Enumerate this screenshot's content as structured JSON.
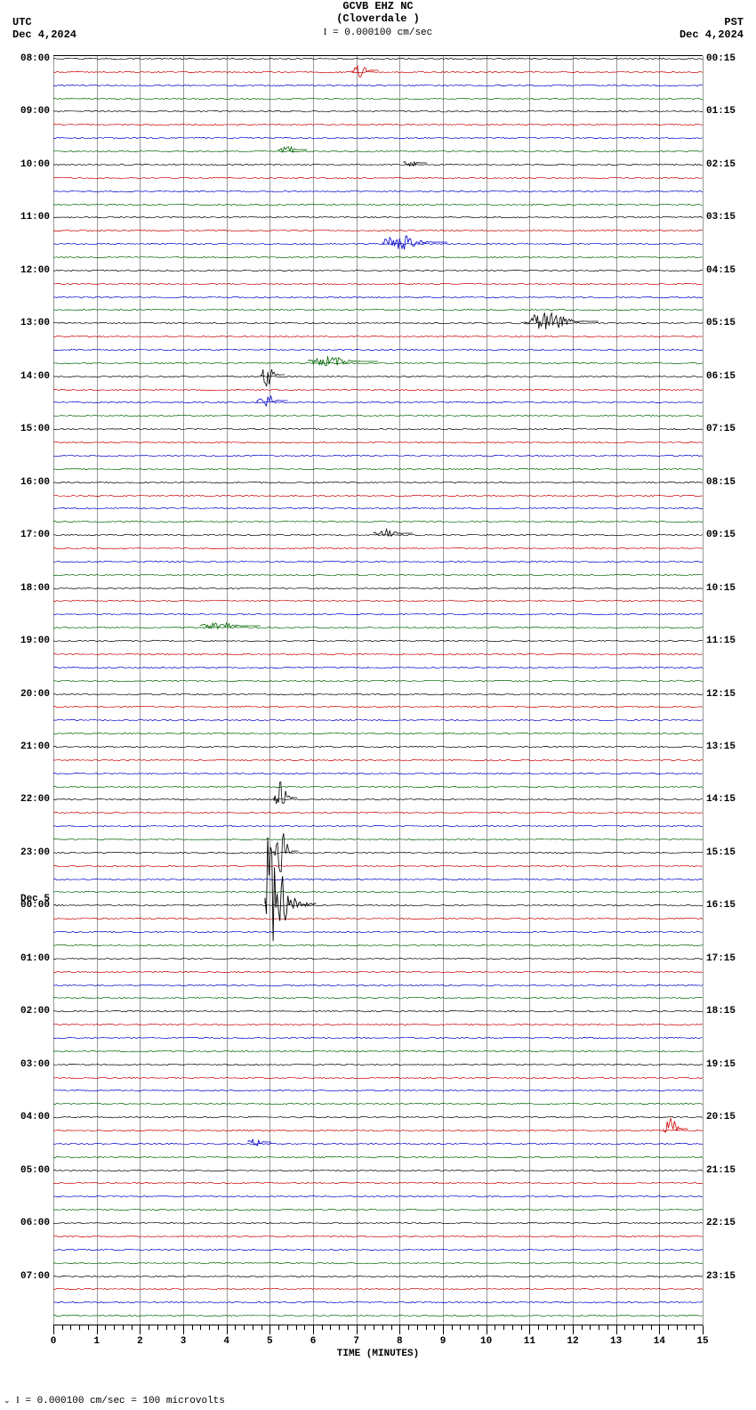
{
  "header": {
    "station": "GCVB EHZ NC",
    "location": "(Cloverdale )",
    "scale_label": "= 0.000100 cm/sec"
  },
  "tz_left": {
    "name": "UTC",
    "date": "Dec 4,2024"
  },
  "tz_right": {
    "name": "PST",
    "date": "Dec 4,2024"
  },
  "plot": {
    "n_traces": 96,
    "colors": [
      "#000000",
      "#cc0000",
      "#0000cc",
      "#006600"
    ],
    "background": "#ffffff",
    "grid_color": "#999999",
    "left_labels": [
      {
        "row": 0,
        "text": "08:00"
      },
      {
        "row": 4,
        "text": "09:00"
      },
      {
        "row": 8,
        "text": "10:00"
      },
      {
        "row": 12,
        "text": "11:00"
      },
      {
        "row": 16,
        "text": "12:00"
      },
      {
        "row": 20,
        "text": "13:00"
      },
      {
        "row": 24,
        "text": "14:00"
      },
      {
        "row": 28,
        "text": "15:00"
      },
      {
        "row": 32,
        "text": "16:00"
      },
      {
        "row": 36,
        "text": "17:00"
      },
      {
        "row": 40,
        "text": "18:00"
      },
      {
        "row": 44,
        "text": "19:00"
      },
      {
        "row": 48,
        "text": "20:00"
      },
      {
        "row": 52,
        "text": "21:00"
      },
      {
        "row": 56,
        "text": "22:00"
      },
      {
        "row": 60,
        "text": "23:00"
      },
      {
        "row": 64,
        "text": "00:00",
        "pre": "Dec 5"
      },
      {
        "row": 68,
        "text": "01:00"
      },
      {
        "row": 72,
        "text": "02:00"
      },
      {
        "row": 76,
        "text": "03:00"
      },
      {
        "row": 80,
        "text": "04:00"
      },
      {
        "row": 84,
        "text": "05:00"
      },
      {
        "row": 88,
        "text": "06:00"
      },
      {
        "row": 92,
        "text": "07:00"
      }
    ],
    "right_labels": [
      {
        "row": 0,
        "text": "00:15"
      },
      {
        "row": 4,
        "text": "01:15"
      },
      {
        "row": 8,
        "text": "02:15"
      },
      {
        "row": 12,
        "text": "03:15"
      },
      {
        "row": 16,
        "text": "04:15"
      },
      {
        "row": 20,
        "text": "05:15"
      },
      {
        "row": 24,
        "text": "06:15"
      },
      {
        "row": 28,
        "text": "07:15"
      },
      {
        "row": 32,
        "text": "08:15"
      },
      {
        "row": 36,
        "text": "09:15"
      },
      {
        "row": 40,
        "text": "10:15"
      },
      {
        "row": 44,
        "text": "11:15"
      },
      {
        "row": 48,
        "text": "12:15"
      },
      {
        "row": 52,
        "text": "13:15"
      },
      {
        "row": 56,
        "text": "14:15"
      },
      {
        "row": 60,
        "text": "15:15"
      },
      {
        "row": 64,
        "text": "16:15"
      },
      {
        "row": 68,
        "text": "17:15"
      },
      {
        "row": 72,
        "text": "18:15"
      },
      {
        "row": 76,
        "text": "19:15"
      },
      {
        "row": 80,
        "text": "20:15"
      },
      {
        "row": 84,
        "text": "21:15"
      },
      {
        "row": 88,
        "text": "22:15"
      },
      {
        "row": 92,
        "text": "23:15"
      }
    ],
    "events": [
      {
        "row": 1,
        "minute": 7.0,
        "width": 0.2,
        "amp": 8,
        "color": "#cc0000"
      },
      {
        "row": 7,
        "minute": 5.3,
        "width": 0.25,
        "amp": 7,
        "color": "#006600"
      },
      {
        "row": 8,
        "minute": 8.2,
        "width": 0.1,
        "amp": 4,
        "color": "#000000"
      },
      {
        "row": 14,
        "minute": 7.7,
        "width": 1.1,
        "amp": 10,
        "color": "#0000cc"
      },
      {
        "row": 20,
        "minute": 11.0,
        "width": 1.3,
        "amp": 12,
        "color": "#000000"
      },
      {
        "row": 23,
        "minute": 6.0,
        "width": 1.2,
        "amp": 6,
        "color": "#006600"
      },
      {
        "row": 24,
        "minute": 4.9,
        "width": 0.15,
        "amp": 14,
        "color": "#000000"
      },
      {
        "row": 26,
        "minute": 4.8,
        "width": 0.3,
        "amp": 10,
        "color": "#0000cc"
      },
      {
        "row": 36,
        "minute": 7.5,
        "width": 0.5,
        "amp": 5,
        "color": "#000000"
      },
      {
        "row": 43,
        "minute": 3.5,
        "width": 1.0,
        "amp": 5,
        "color": "#006600"
      },
      {
        "row": 56,
        "minute": 5.2,
        "width": 0.12,
        "amp": 18,
        "color": "#000000"
      },
      {
        "row": 60,
        "minute": 5.2,
        "width": 0.15,
        "amp": 28,
        "color": "#000000"
      },
      {
        "row": 64,
        "minute": 5.0,
        "width": 0.8,
        "amp": 110,
        "color": "#000000",
        "big": true
      },
      {
        "row": 81,
        "minute": 14.2,
        "width": 0.15,
        "amp": 14,
        "color": "#cc0000"
      },
      {
        "row": 82,
        "minute": 4.6,
        "width": 0.1,
        "amp": 5,
        "color": "#0000cc"
      }
    ]
  },
  "xaxis": {
    "title": "TIME (MINUTES)",
    "min": 0,
    "max": 15,
    "major_step": 1,
    "minor_per_major": 5,
    "labels": [
      "0",
      "1",
      "2",
      "3",
      "4",
      "5",
      "6",
      "7",
      "8",
      "9",
      "10",
      "11",
      "12",
      "13",
      "14",
      "15"
    ]
  },
  "footer": {
    "text": "= 0.000100 cm/sec =    100 microvolts"
  }
}
